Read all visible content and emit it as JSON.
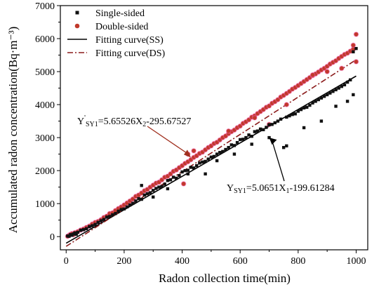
{
  "chart_data": {
    "type": "scatter",
    "title": "",
    "xlabel": "Radon collection time(min)",
    "ylabel": "Accumulated radon concentration(Bq·m⁻³)",
    "xlim": [
      -20,
      1040
    ],
    "ylim": [
      -400,
      7000
    ],
    "xticks": [
      0,
      200,
      400,
      600,
      800,
      1000
    ],
    "yticks": [
      0,
      1000,
      2000,
      3000,
      4000,
      5000,
      6000,
      7000
    ],
    "legend_position": "top-left",
    "series": [
      {
        "name": "Single-sided",
        "marker": "square",
        "color": "#111111",
        "x": [
          5,
          10,
          15,
          20,
          25,
          30,
          35,
          40,
          50,
          60,
          70,
          80,
          90,
          100,
          110,
          120,
          130,
          140,
          150,
          160,
          170,
          180,
          190,
          200,
          210,
          220,
          230,
          240,
          250,
          260,
          270,
          280,
          290,
          300,
          310,
          320,
          330,
          340,
          350,
          360,
          370,
          380,
          390,
          400,
          410,
          420,
          430,
          440,
          450,
          460,
          470,
          480,
          490,
          500,
          510,
          520,
          530,
          540,
          550,
          560,
          570,
          580,
          590,
          600,
          610,
          620,
          630,
          640,
          650,
          660,
          670,
          680,
          690,
          700,
          710,
          720,
          730,
          740,
          750,
          760,
          770,
          780,
          790,
          800,
          810,
          820,
          830,
          840,
          850,
          860,
          870,
          880,
          890,
          900,
          910,
          920,
          930,
          940,
          950,
          960,
          970,
          980,
          990,
          1000,
          260,
          300,
          350,
          420,
          480,
          520,
          580,
          640,
          700,
          760,
          820,
          880,
          930,
          970,
          990
        ],
        "y": [
          20,
          10,
          60,
          40,
          80,
          110,
          70,
          130,
          190,
          210,
          240,
          300,
          330,
          370,
          430,
          480,
          520,
          590,
          610,
          660,
          700,
          770,
          820,
          840,
          900,
          960,
          1010,
          1080,
          1150,
          1130,
          1260,
          1300,
          1330,
          1400,
          1460,
          1500,
          1520,
          1590,
          1700,
          1720,
          1800,
          1770,
          1850,
          1960,
          2000,
          2010,
          2100,
          2080,
          2150,
          2230,
          2260,
          2280,
          2350,
          2410,
          2430,
          2500,
          2550,
          2580,
          2640,
          2700,
          2780,
          2760,
          2850,
          2940,
          2950,
          3000,
          3080,
          3040,
          3180,
          3200,
          3260,
          3240,
          3310,
          3390,
          3400,
          3450,
          3500,
          3560,
          2700,
          3620,
          3660,
          3700,
          3720,
          3800,
          3850,
          3900,
          3920,
          3980,
          4050,
          4100,
          4150,
          4200,
          4250,
          4300,
          4350,
          4400,
          4450,
          4500,
          4550,
          4600,
          4680,
          4750,
          5600,
          5700,
          1550,
          1200,
          1450,
          1900,
          1900,
          2300,
          2500,
          2800,
          3000,
          2750,
          3300,
          3500,
          3950,
          4100,
          4300
        ]
      },
      {
        "name": "Double-sided",
        "marker": "circle",
        "color": "#c0392b",
        "x": [
          5,
          10,
          15,
          20,
          25,
          30,
          40,
          50,
          60,
          70,
          80,
          90,
          100,
          110,
          120,
          130,
          140,
          150,
          160,
          170,
          180,
          190,
          200,
          210,
          220,
          230,
          240,
          250,
          260,
          270,
          280,
          290,
          300,
          310,
          320,
          330,
          340,
          350,
          360,
          370,
          380,
          390,
          400,
          410,
          420,
          430,
          440,
          450,
          460,
          470,
          480,
          490,
          500,
          510,
          520,
          530,
          540,
          550,
          560,
          570,
          580,
          590,
          600,
          610,
          620,
          630,
          640,
          650,
          660,
          670,
          680,
          690,
          700,
          710,
          720,
          730,
          740,
          750,
          760,
          770,
          780,
          790,
          800,
          810,
          820,
          830,
          840,
          850,
          860,
          870,
          880,
          890,
          900,
          910,
          920,
          930,
          940,
          950,
          960,
          970,
          980,
          990,
          1000,
          1000,
          405,
          420,
          440,
          560,
          650,
          700,
          760,
          850,
          900,
          950,
          990
        ],
        "y": [
          10,
          40,
          70,
          90,
          60,
          120,
          150,
          200,
          230,
          280,
          320,
          380,
          430,
          460,
          510,
          580,
          620,
          700,
          720,
          790,
          850,
          900,
          960,
          1020,
          1080,
          1140,
          1220,
          1260,
          1320,
          1390,
          1430,
          1500,
          1560,
          1620,
          1650,
          1720,
          1800,
          1830,
          1900,
          1980,
          2020,
          2090,
          2150,
          2220,
          2270,
          2330,
          2400,
          2450,
          2520,
          2560,
          2630,
          2700,
          2750,
          2820,
          2860,
          2930,
          3000,
          3050,
          3120,
          3180,
          3230,
          3300,
          3350,
          3430,
          3480,
          3540,
          3620,
          3660,
          3730,
          3790,
          3850,
          3920,
          3960,
          4040,
          4090,
          4150,
          4230,
          4280,
          4340,
          4400,
          4470,
          4520,
          4580,
          4640,
          4700,
          4760,
          4820,
          4880,
          4930,
          4990,
          5050,
          5100,
          5160,
          5230,
          5280,
          5330,
          5400,
          5460,
          5520,
          5560,
          5620,
          5680,
          6130,
          5300,
          1600,
          2500,
          2600,
          3200,
          3600,
          3400,
          4000,
          4900,
          5000,
          5100,
          5800
        ]
      }
    ],
    "fit_lines": [
      {
        "name": "Fitting curve(SS)",
        "slope": 5.0651,
        "intercept": -199.61284,
        "x_range": [
          0,
          1000
        ],
        "style": "solid",
        "color": "#000000"
      },
      {
        "name": "Fitting curve(DS)",
        "slope": 5.65526,
        "intercept": -295.67527,
        "x_range": [
          0,
          1000
        ],
        "style": "dash-dot",
        "color": "#8b1a1a"
      }
    ],
    "annotations": [
      {
        "base": "Y",
        "sup": "'",
        "sub": "SY1",
        "rest": "=5.65526X",
        "rest_sub": "2",
        "tail": "-295.67527",
        "arrow_color": "#a0301f",
        "arrow_to": [
          430,
          2400
        ]
      },
      {
        "base": "Y",
        "sup": "",
        "sub": "SY1",
        "rest": "=5.0651X",
        "rest_sub": "1",
        "tail": "-199.61284",
        "arrow_color": "#000000",
        "arrow_to": [
          700,
          3000
        ]
      }
    ]
  }
}
